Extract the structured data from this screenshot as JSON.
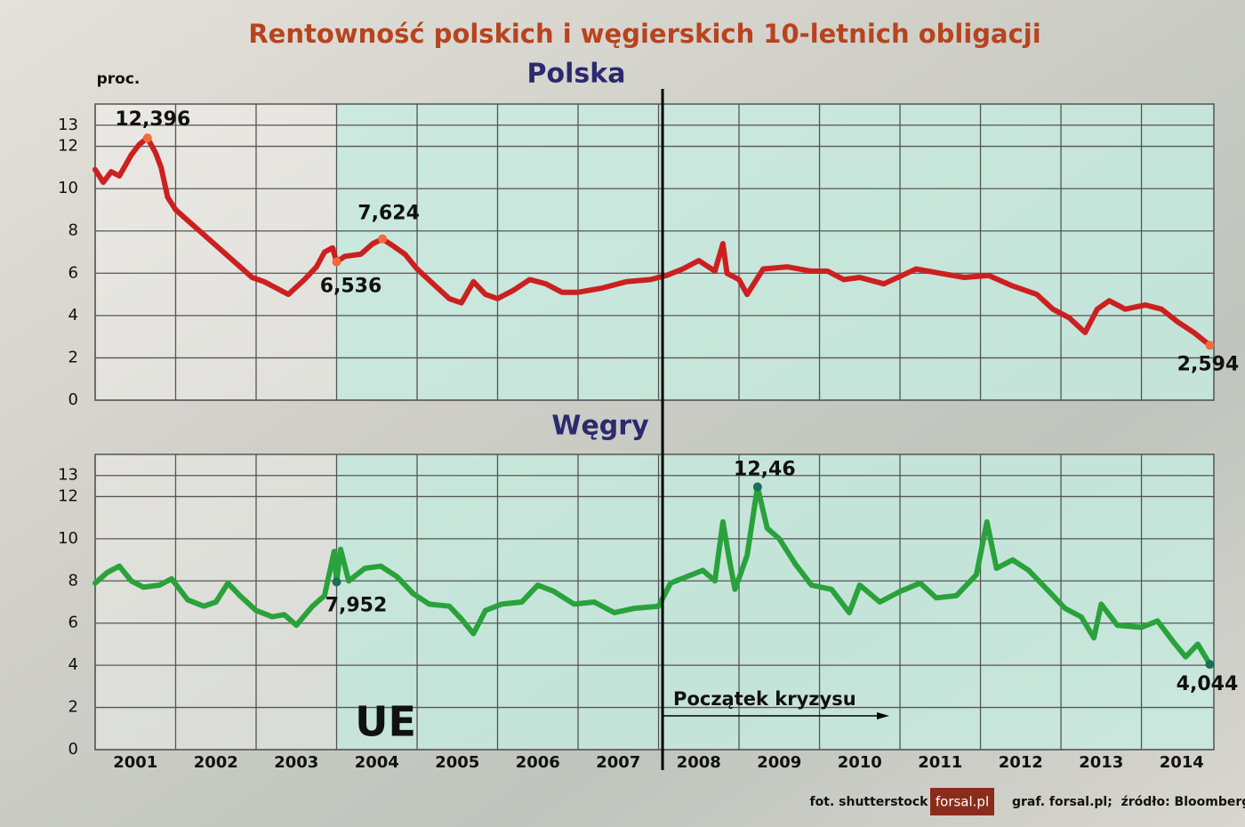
{
  "title": "Rentowność polskich i węgierskich 10-letnich obligacji",
  "credits": {
    "photo": "fot. shutterstock",
    "logo": "forsal.pl",
    "source": "graf. forsal.pl;  źródło: Bloomberg"
  },
  "chart_data": [
    {
      "type": "line",
      "title": "Polska",
      "ylabel": "proc.",
      "x": [
        2001.0,
        2001.1,
        2001.2,
        2001.3,
        2001.45,
        2001.55,
        2001.65,
        2001.75,
        2001.82,
        2001.9,
        2002.0,
        2002.95,
        2003.1,
        2003.25,
        2003.4,
        2003.6,
        2003.75,
        2003.85,
        2003.95,
        2004.0,
        2004.1,
        2004.3,
        2004.45,
        2004.57,
        2004.7,
        2004.85,
        2005.0,
        2005.2,
        2005.4,
        2005.55,
        2005.7,
        2005.85,
        2006.0,
        2006.2,
        2006.4,
        2006.6,
        2006.8,
        2007.0,
        2007.3,
        2007.6,
        2007.9,
        2008.1,
        2008.3,
        2008.5,
        2008.7,
        2008.8,
        2008.85,
        2009.0,
        2009.1,
        2009.3,
        2009.6,
        2009.9,
        2010.1,
        2010.3,
        2010.5,
        2010.8,
        2011.2,
        2011.5,
        2011.8,
        2012.1,
        2012.4,
        2012.7,
        2012.9,
        2013.1,
        2013.3,
        2013.45,
        2013.6,
        2013.8,
        2014.05,
        2014.25,
        2014.45,
        2014.65,
        2014.85
      ],
      "series": [
        {
          "color": "#cc2020",
          "values": [
            10.9,
            10.3,
            10.8,
            10.6,
            11.6,
            12.1,
            12.396,
            11.7,
            11.0,
            9.6,
            9.0,
            5.8,
            5.6,
            5.3,
            5.0,
            5.7,
            6.3,
            7.0,
            7.2,
            6.536,
            6.8,
            6.9,
            7.4,
            7.624,
            7.3,
            6.9,
            6.2,
            5.5,
            4.8,
            4.6,
            5.6,
            5.0,
            4.8,
            5.2,
            5.7,
            5.5,
            5.1,
            5.1,
            5.3,
            5.6,
            5.7,
            5.9,
            6.2,
            6.6,
            6.1,
            7.4,
            6.0,
            5.7,
            5.0,
            6.2,
            6.3,
            6.1,
            6.1,
            5.7,
            5.8,
            5.5,
            6.2,
            6.0,
            5.8,
            5.9,
            5.4,
            5.0,
            4.3,
            3.9,
            3.2,
            4.3,
            4.7,
            4.3,
            4.5,
            4.3,
            3.7,
            3.2,
            2.594
          ]
        }
      ],
      "annotations": [
        {
          "label": "12,396",
          "x": 2001.65,
          "y": 12.396,
          "color": "#f26b3a"
        },
        {
          "label": "6,536",
          "x": 2004.0,
          "y": 6.536,
          "color": "#f26b3a"
        },
        {
          "label": "7,624",
          "x": 2004.57,
          "y": 7.624,
          "color": "#f26b3a"
        },
        {
          "label": "2,594",
          "x": 2014.85,
          "y": 2.594,
          "color": "#f26b3a"
        }
      ],
      "xlim": [
        2001,
        2014.9
      ],
      "ylim": [
        0,
        14
      ],
      "yticks": [
        0,
        2,
        4,
        6,
        8,
        10,
        12,
        13
      ],
      "grid": true,
      "shade_from": 2004.0
    },
    {
      "type": "line",
      "title": "Węgry",
      "x": [
        2001.0,
        2001.15,
        2001.3,
        2001.45,
        2001.6,
        2001.8,
        2001.95,
        2002.15,
        2002.35,
        2002.5,
        2002.65,
        2002.8,
        2003.0,
        2003.2,
        2003.35,
        2003.5,
        2003.7,
        2003.85,
        2003.97,
        2004.0,
        2004.05,
        2004.15,
        2004.35,
        2004.55,
        2004.75,
        2004.95,
        2005.15,
        2005.4,
        2005.55,
        2005.7,
        2005.85,
        2006.05,
        2006.3,
        2006.5,
        2006.7,
        2006.95,
        2007.2,
        2007.45,
        2007.7,
        2008.0,
        2008.15,
        2008.35,
        2008.55,
        2008.7,
        2008.8,
        2008.88,
        2008.95,
        2009.1,
        2009.23,
        2009.35,
        2009.5,
        2009.7,
        2009.9,
        2010.15,
        2010.37,
        2010.5,
        2010.75,
        2011.0,
        2011.25,
        2011.45,
        2011.7,
        2011.95,
        2012.08,
        2012.2,
        2012.4,
        2012.6,
        2012.85,
        2013.05,
        2013.25,
        2013.41,
        2013.5,
        2013.7,
        2014.0,
        2014.2,
        2014.4,
        2014.55,
        2014.7,
        2014.85
      ],
      "series": [
        {
          "color": "#2aa23c",
          "values": [
            7.9,
            8.4,
            8.7,
            8.0,
            7.7,
            7.8,
            8.1,
            7.1,
            6.8,
            7.0,
            7.9,
            7.3,
            6.6,
            6.3,
            6.4,
            5.9,
            6.8,
            7.3,
            9.4,
            7.952,
            9.5,
            8.0,
            8.6,
            8.7,
            8.2,
            7.4,
            6.9,
            6.8,
            6.2,
            5.5,
            6.6,
            6.9,
            7.0,
            7.8,
            7.5,
            6.9,
            7.0,
            6.5,
            6.7,
            6.8,
            7.9,
            8.2,
            8.5,
            8.0,
            10.8,
            9.0,
            7.6,
            9.2,
            12.46,
            10.5,
            10.0,
            8.8,
            7.8,
            7.6,
            6.5,
            7.8,
            7.0,
            7.5,
            7.9,
            7.2,
            7.3,
            8.3,
            10.8,
            8.6,
            9.0,
            8.5,
            7.5,
            6.7,
            6.3,
            5.3,
            6.9,
            5.9,
            5.8,
            6.1,
            5.1,
            4.4,
            5.0,
            4.044
          ]
        }
      ],
      "annotations": [
        {
          "label": "12,46",
          "x": 2009.23,
          "y": 12.46,
          "color": "#1b6e5a"
        },
        {
          "label": "7,952",
          "x": 2004.0,
          "y": 7.952,
          "color": "#1b6e5a"
        },
        {
          "label": "4,044",
          "x": 2014.85,
          "y": 4.044,
          "color": "#1b6e5a"
        }
      ],
      "xlim": [
        2001,
        2014.9
      ],
      "ylim": [
        0,
        14
      ],
      "yticks": [
        0,
        2,
        4,
        6,
        8,
        10,
        12,
        13
      ],
      "xticks": [
        2001,
        2002,
        2003,
        2004,
        2005,
        2006,
        2007,
        2008,
        2009,
        2010,
        2011,
        2012,
        2013,
        2014
      ],
      "grid": true,
      "shade": {
        "from": 2004.0,
        "label": "UE"
      },
      "event": {
        "x": 2008.05,
        "label": "Początek kryzysu"
      }
    }
  ]
}
